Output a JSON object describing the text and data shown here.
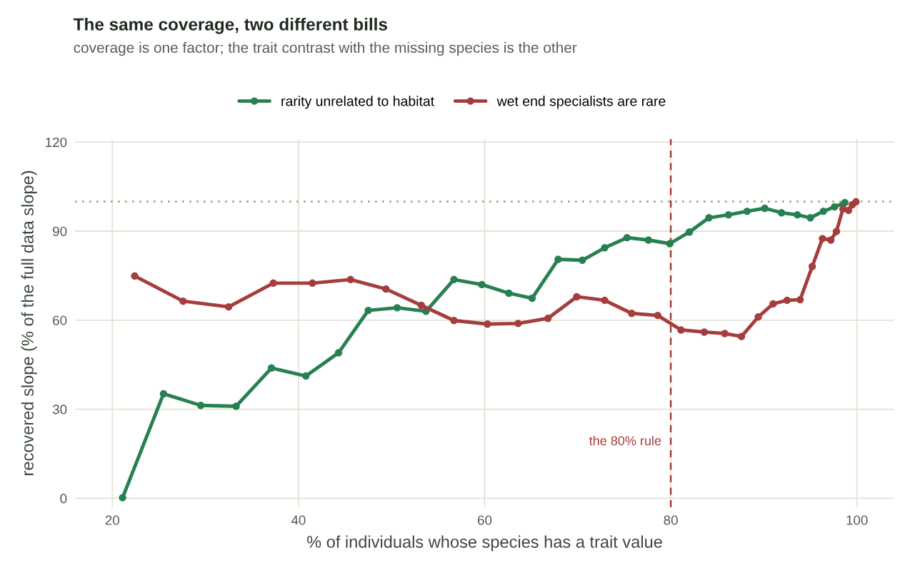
{
  "chart_data": {
    "type": "line",
    "title": "The same coverage, two different bills",
    "subtitle": "coverage is one factor; the trait contrast with the missing species is the other",
    "xlabel": "% of individuals whose species has a trait value",
    "ylabel": "recovered slope (% of the full data slope)",
    "series": [
      {
        "name": "rarity unrelated to habitat",
        "color": "#27804f",
        "x": [
          21.1,
          25.5,
          29.5,
          33.3,
          37.1,
          40.8,
          44.3,
          47.5,
          50.6,
          53.7,
          56.7,
          59.7,
          62.6,
          65.1,
          67.9,
          70.5,
          72.9,
          75.3,
          77.6,
          79.9,
          82.0,
          84.1,
          86.2,
          88.2,
          90.1,
          91.9,
          93.6,
          95.0,
          96.4,
          97.6,
          98.7
        ],
        "values": [
          0.2,
          35.2,
          31.3,
          31.0,
          43.9,
          41.2,
          49.0,
          63.3,
          64.2,
          63.0,
          73.7,
          72.0,
          69.1,
          67.4,
          80.5,
          80.2,
          84.4,
          87.8,
          87.0,
          85.8,
          89.7,
          94.5,
          95.5,
          96.7,
          97.7,
          96.2,
          95.5,
          94.5,
          96.7,
          98.2,
          99.6
        ]
      },
      {
        "name": "wet end specialists are rare",
        "color": "#a63d3d",
        "x": [
          22.4,
          27.6,
          32.5,
          37.3,
          41.5,
          45.6,
          49.4,
          53.2,
          56.7,
          60.3,
          63.6,
          66.8,
          69.9,
          72.9,
          75.8,
          78.6,
          81.1,
          83.6,
          85.8,
          87.6,
          89.4,
          91.0,
          92.5,
          93.9,
          95.2,
          96.3,
          97.2,
          97.8,
          98.5,
          99.1,
          99.5,
          99.9
        ],
        "values": [
          74.9,
          66.4,
          64.5,
          72.5,
          72.5,
          73.7,
          70.5,
          65.0,
          59.9,
          58.7,
          58.9,
          60.6,
          67.9,
          66.7,
          62.3,
          61.6,
          56.7,
          56.0,
          55.5,
          54.5,
          61.1,
          65.5,
          66.7,
          66.9,
          78.1,
          87.5,
          87.0,
          89.9,
          97.5,
          97.0,
          98.9,
          99.9
        ]
      }
    ],
    "xlim": [
      16,
      104
    ],
    "ylim": [
      -3,
      121
    ],
    "xticks": [
      20,
      40,
      60,
      80,
      100
    ],
    "yticks": [
      0,
      30,
      60,
      90,
      120
    ],
    "ref_lines": [
      {
        "axis": "y",
        "value": 100,
        "color": "#8a9f6a",
        "line_style": "dotted"
      },
      {
        "axis": "x",
        "value": 80,
        "label": "the 80% rule",
        "color": "#a63d3d",
        "line_style": "dashed"
      }
    ],
    "grid": true,
    "legend": "top",
    "marker": "circle",
    "line_style": "solid"
  }
}
